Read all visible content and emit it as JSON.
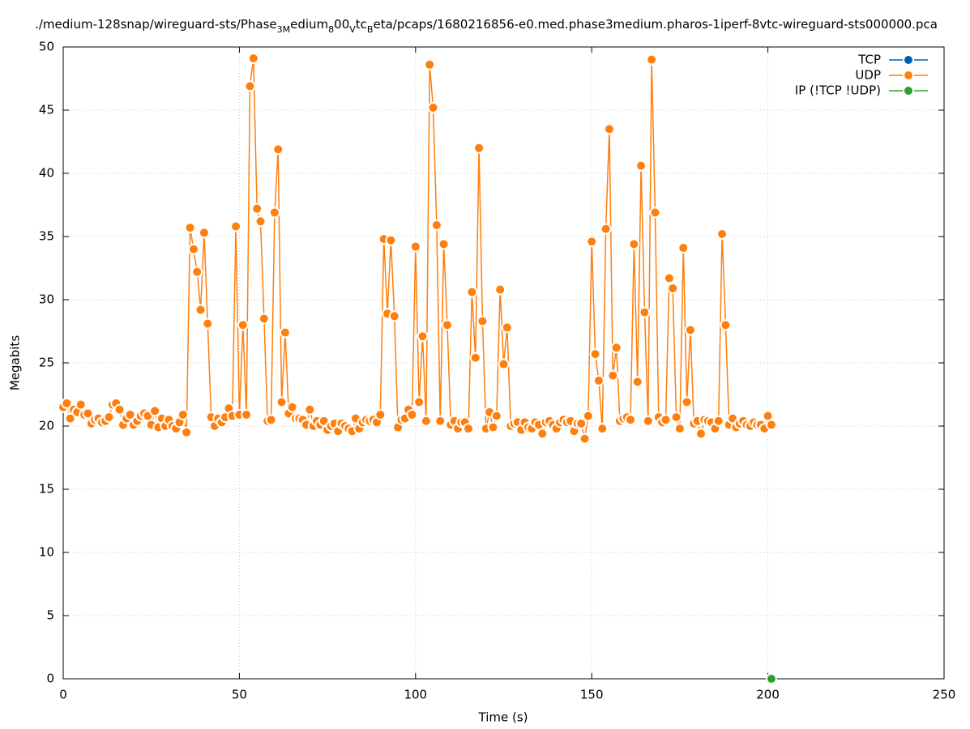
{
  "chart_data": {
    "type": "line",
    "title": [
      {
        "text": "./medium-128snap/wireguard-sts/Phase",
        "subscript": false
      },
      {
        "text": "3M",
        "subscript": true
      },
      {
        "text": "edium",
        "subscript": false
      },
      {
        "text": "8",
        "subscript": true
      },
      {
        "text": "00",
        "subscript": false
      },
      {
        "text": "V",
        "subscript": true
      },
      {
        "text": "tc",
        "subscript": false
      },
      {
        "text": "B",
        "subscript": true
      },
      {
        "text": "eta/pcaps/1680216856-e0.med.phase3medium.pharos-1iperf-8vtc-wireguard-sts000000.pca",
        "subscript": false
      }
    ],
    "x_label": "Time (s)",
    "y_label": "Megabits",
    "xlim": [
      0,
      250
    ],
    "xticks": [
      0,
      50,
      100,
      150,
      200,
      250
    ],
    "ylim": [
      0,
      50
    ],
    "yticks": [
      0,
      5,
      10,
      15,
      20,
      25,
      30,
      35,
      40,
      45,
      50
    ],
    "grid": true,
    "legend": "top-right",
    "series": [
      {
        "name": "TCP",
        "color": "#0060ad",
        "x": [],
        "values": []
      },
      {
        "name": "UDP",
        "color": "#ff7f0e",
        "x": [
          0,
          1,
          2,
          3,
          4,
          5,
          6,
          7,
          8,
          9,
          10,
          11,
          12,
          13,
          14,
          15,
          16,
          17,
          18,
          19,
          20,
          21,
          22,
          23,
          24,
          25,
          26,
          27,
          28,
          29,
          30,
          31,
          32,
          33,
          34,
          35,
          36,
          37,
          38,
          39,
          40,
          41,
          42,
          43,
          44,
          45,
          46,
          47,
          48,
          49,
          50,
          51,
          52,
          53,
          54,
          55,
          56,
          57,
          58,
          59,
          60,
          61,
          62,
          63,
          64,
          65,
          66,
          67,
          68,
          69,
          70,
          71,
          72,
          73,
          74,
          75,
          76,
          77,
          78,
          79,
          80,
          81,
          82,
          83,
          84,
          85,
          86,
          87,
          88,
          89,
          90,
          91,
          92,
          93,
          94,
          95,
          96,
          97,
          98,
          99,
          100,
          101,
          102,
          103,
          104,
          105,
          106,
          107,
          108,
          109,
          110,
          111,
          112,
          113,
          114,
          115,
          116,
          117,
          118,
          119,
          120,
          121,
          122,
          123,
          124,
          125,
          126,
          127,
          128,
          129,
          130,
          131,
          132,
          133,
          134,
          135,
          136,
          137,
          138,
          139,
          140,
          141,
          142,
          143,
          144,
          145,
          146,
          147,
          148,
          149,
          150,
          151,
          152,
          153,
          154,
          155,
          156,
          157,
          158,
          159,
          160,
          161,
          162,
          163,
          164,
          165,
          166,
          167,
          168,
          169,
          170,
          171,
          172,
          173,
          174,
          175,
          176,
          177,
          178,
          179,
          180,
          181,
          182,
          183,
          184,
          185,
          186,
          187,
          188,
          189,
          190,
          191,
          192,
          193,
          194,
          195,
          196,
          197,
          198,
          199,
          200,
          201
        ],
        "values": [
          21.5,
          21.8,
          20.6,
          21.3,
          21.1,
          21.7,
          20.9,
          21.0,
          20.2,
          20.5,
          20.6,
          20.3,
          20.4,
          20.7,
          21.7,
          21.8,
          21.3,
          20.1,
          20.6,
          20.9,
          20.1,
          20.4,
          20.8,
          21.0,
          20.8,
          20.1,
          21.2,
          19.9,
          20.6,
          20.0,
          20.5,
          20.0,
          19.8,
          20.3,
          20.9,
          19.5,
          35.7,
          34.0,
          32.2,
          29.2,
          35.3,
          28.1,
          20.7,
          20.0,
          20.6,
          20.3,
          20.7,
          21.4,
          20.8,
          35.8,
          20.9,
          28.0,
          20.9,
          46.9,
          49.1,
          37.2,
          36.2,
          28.5,
          20.4,
          20.5,
          36.9,
          41.9,
          21.9,
          27.4,
          21.0,
          21.5,
          20.6,
          20.6,
          20.5,
          20.1,
          21.3,
          20.0,
          20.4,
          20.1,
          20.4,
          19.7,
          20.0,
          20.2,
          19.6,
          20.2,
          20.0,
          19.8,
          19.6,
          20.6,
          19.8,
          20.3,
          20.5,
          20.4,
          20.5,
          20.3,
          20.9,
          34.8,
          28.9,
          34.7,
          28.7,
          19.9,
          20.5,
          20.6,
          21.3,
          20.9,
          34.2,
          21.9,
          27.1,
          20.4,
          48.6,
          45.2,
          35.9,
          20.4,
          34.4,
          28.0,
          20.1,
          20.4,
          19.8,
          20.3,
          20.3,
          19.8,
          30.6,
          25.4,
          42.0,
          28.3,
          19.8,
          21.1,
          19.9,
          20.8,
          30.8,
          24.9,
          27.8,
          20.0,
          20.2,
          20.3,
          19.7,
          20.3,
          19.9,
          19.8,
          20.3,
          20.1,
          19.4,
          20.3,
          20.4,
          20.1,
          19.8,
          20.3,
          20.5,
          20.3,
          20.4,
          19.6,
          20.2,
          20.2,
          19.0,
          20.8,
          34.6,
          25.7,
          23.6,
          19.8,
          35.6,
          43.5,
          24.0,
          26.2,
          20.4,
          20.6,
          20.7,
          20.5,
          34.4,
          23.5,
          40.6,
          29.0,
          20.4,
          49.0,
          36.9,
          20.7,
          20.3,
          20.5,
          31.7,
          30.9,
          20.7,
          19.8,
          34.1,
          21.9,
          27.6,
          20.2,
          20.4,
          19.4,
          20.5,
          20.4,
          20.3,
          19.8,
          20.4,
          35.2,
          28.0,
          20.1,
          20.6,
          19.9,
          20.2,
          20.4,
          20.1,
          20.0,
          20.3,
          20.1,
          20.1,
          19.8,
          20.8,
          20.1
        ]
      },
      {
        "name": "IP (!TCP  !UDP)",
        "color": "#2ca02c",
        "x": [
          201
        ],
        "values": [
          0
        ]
      }
    ]
  }
}
